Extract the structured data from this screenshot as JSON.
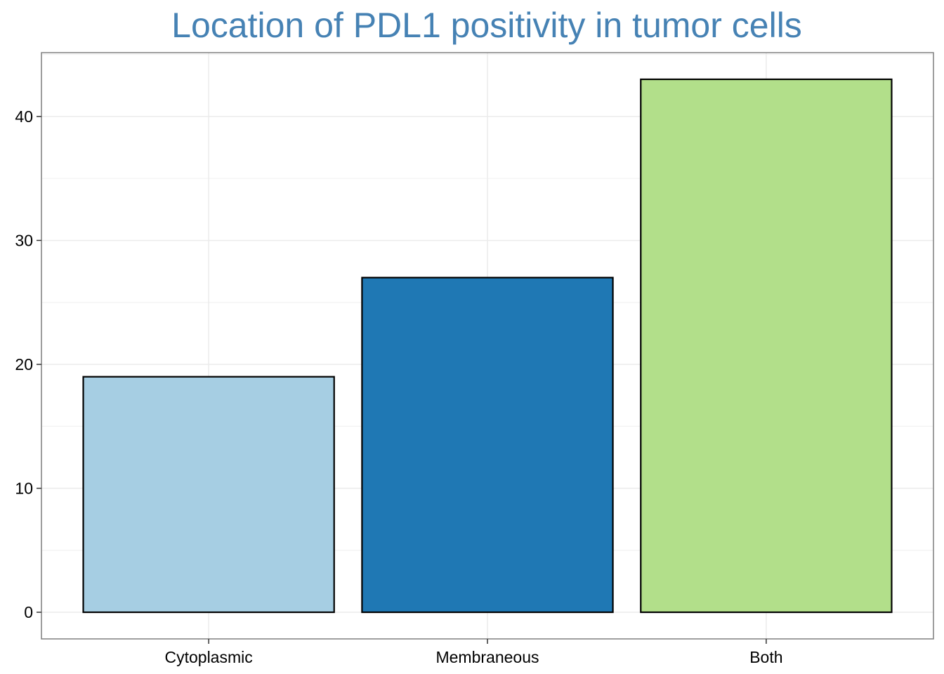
{
  "chart_data": {
    "type": "bar",
    "title": "Location of PDL1 positivity in tumor cells",
    "xlabel": "",
    "ylabel": "",
    "categories": [
      "Cytoplasmic",
      "Membraneous",
      "Both"
    ],
    "values": [
      19,
      27,
      43
    ],
    "bar_colors": [
      "#a6cee3",
      "#1f78b4",
      "#b2df8a"
    ],
    "bar_outline_color": "#000000",
    "title_color": "#4682b4",
    "yticks": [
      0,
      10,
      20,
      30,
      40
    ],
    "ylim": [
      -2.15,
      45.15
    ],
    "grid": true,
    "legend": "none"
  }
}
